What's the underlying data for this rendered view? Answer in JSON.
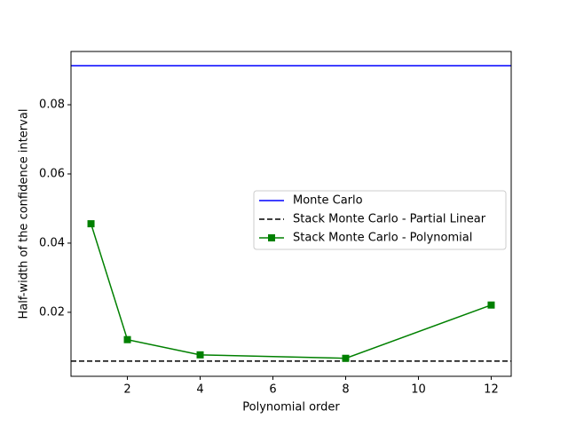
{
  "chart_data": {
    "type": "line",
    "x_label": "Polynomial order",
    "y_label": "Half-width of the confidence interval",
    "x": [
      1,
      2,
      4,
      8,
      12
    ],
    "series": [
      {
        "name": "Monte Carlo",
        "color": "#0000ff",
        "style": "solid",
        "y": 0.0913
      },
      {
        "name": "Stack Monte Carlo - Partial Linear",
        "color": "#000000",
        "style": "dashed",
        "y": 0.0059
      },
      {
        "name": "Stack Monte Carlo - Polynomial",
        "color": "#008000",
        "style": "solid",
        "marker": "square",
        "values": [
          0.0456,
          0.0121,
          0.0077,
          0.0067,
          0.0221
        ]
      }
    ],
    "xlim": [
      0.45,
      12.55
    ],
    "ylim": [
      0.0015,
      0.0954
    ],
    "xticks": [
      2,
      4,
      6,
      8,
      10,
      12
    ],
    "yticks": [
      0.02,
      0.04,
      0.06,
      0.08
    ],
    "legend": "center right"
  }
}
